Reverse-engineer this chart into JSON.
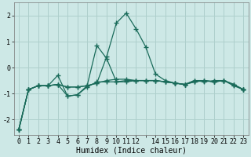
{
  "xlabel": "Humidex (Indice chaleur)",
  "background_color": "#cde8e6",
  "grid_color": "#aecfcc",
  "line_color": "#1a6b5a",
  "xlim_min": -0.5,
  "xlim_max": 23.5,
  "ylim_min": -2.6,
  "ylim_max": 2.5,
  "yticks": [
    -2,
    -1,
    0,
    1,
    2
  ],
  "xtick_labels": [
    "0",
    "1",
    "2",
    "3",
    "4",
    "5",
    "6",
    "7",
    "8",
    "9",
    "10",
    "11",
    "12",
    "",
    "14",
    "15",
    "16",
    "17",
    "18",
    "19",
    "20",
    "21",
    "22",
    "23"
  ],
  "series": [
    [
      -2.4,
      -0.85,
      -0.7,
      -0.7,
      -0.65,
      -0.75,
      -0.75,
      -0.7,
      -0.6,
      0.42,
      1.72,
      2.1,
      1.5,
      0.8,
      -0.25,
      -0.5,
      -0.6,
      -0.65,
      -0.5,
      -0.55,
      -0.5,
      -0.5,
      -0.7,
      -0.85
    ],
    [
      -2.4,
      -0.85,
      -0.7,
      -0.7,
      -0.3,
      -1.1,
      -1.05,
      -0.75,
      -0.55,
      -0.55,
      -0.55,
      -0.5,
      -0.5,
      -0.5,
      -0.5,
      -0.55,
      -0.6,
      -0.65,
      -0.55,
      -0.5,
      -0.55,
      -0.5,
      -0.65,
      -0.85
    ],
    [
      -2.4,
      -0.85,
      -0.7,
      -0.7,
      -0.65,
      -1.1,
      -1.05,
      -0.7,
      0.85,
      0.35,
      -0.55,
      -0.55,
      -0.5,
      -0.5,
      -0.5,
      -0.55,
      -0.6,
      -0.65,
      -0.55,
      -0.5,
      -0.55,
      -0.5,
      -0.65,
      -0.85
    ],
    [
      -2.4,
      -0.85,
      -0.7,
      -0.7,
      -0.65,
      -0.75,
      -0.75,
      -0.7,
      -0.6,
      -0.5,
      -0.45,
      -0.45,
      -0.5,
      -0.5,
      -0.5,
      -0.55,
      -0.6,
      -0.65,
      -0.5,
      -0.5,
      -0.55,
      -0.5,
      -0.65,
      -0.85
    ]
  ],
  "marker": "+",
  "markersize": 4,
  "linewidth": 0.9,
  "xlabel_fontsize": 7,
  "tick_fontsize": 6,
  "dpi": 100,
  "figwidth": 3.2,
  "figheight": 2.0
}
